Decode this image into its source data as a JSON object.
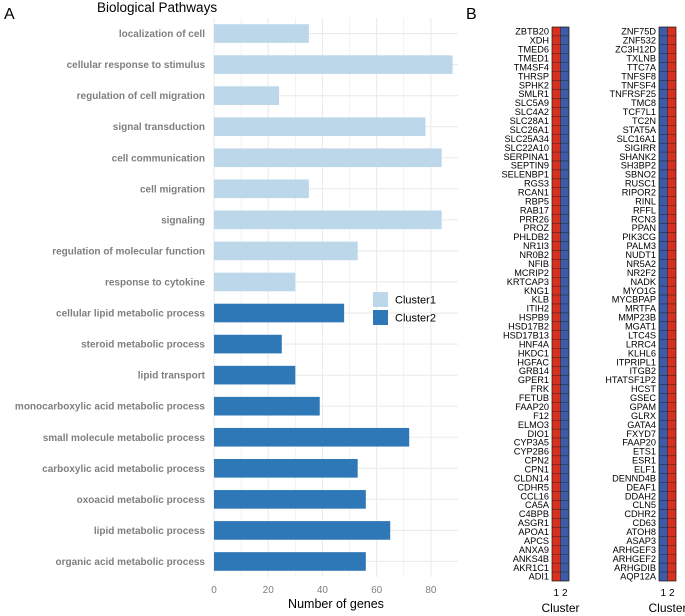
{
  "colors": {
    "cluster1": "#bcd7ea",
    "cluster2": "#2e78b7",
    "heat_red": "#d7301f",
    "heat_blue": "#3d5ba9",
    "grid": "#ebebeb"
  },
  "chart_data": [
    {
      "type": "bar",
      "orientation": "horizontal",
      "panel": "A",
      "title": "Biological Pathways",
      "xlabel": "Number of genes",
      "ylabel": "",
      "xlim": [
        0,
        90
      ],
      "xticks": [
        0,
        20,
        40,
        60,
        80
      ],
      "legend_position": "right",
      "legend": [
        {
          "name": "Cluster1",
          "color_key": "cluster1"
        },
        {
          "name": "Cluster2",
          "color_key": "cluster2"
        }
      ],
      "categories": [
        "localization of cell",
        "cellular response to stimulus",
        "regulation of cell migration",
        "signal transduction",
        "cell communication",
        "cell migration",
        "signaling",
        "regulation of molecular function",
        "response to cytokine",
        "cellular lipid metabolic process",
        "steroid metabolic process",
        "lipid transport",
        "monocarboxylic acid metabolic process",
        "small molecule metabolic process",
        "carboxylic acid metabolic process",
        "oxoacid metabolic process",
        "lipid metabolic process",
        "organic acid metabolic process"
      ],
      "values": [
        35,
        88,
        24,
        78,
        84,
        35,
        84,
        53,
        30,
        48,
        25,
        30,
        39,
        72,
        53,
        56,
        65,
        56
      ],
      "clusters": [
        "Cluster1",
        "Cluster1",
        "Cluster1",
        "Cluster1",
        "Cluster1",
        "Cluster1",
        "Cluster1",
        "Cluster1",
        "Cluster1",
        "Cluster2",
        "Cluster2",
        "Cluster2",
        "Cluster2",
        "Cluster2",
        "Cluster2",
        "Cluster2",
        "Cluster2",
        "Cluster2"
      ]
    },
    {
      "type": "heatmap",
      "panel": "B",
      "xlabel": "Cluster",
      "columns": [
        "1",
        "2"
      ],
      "left": {
        "genes": [
          "ZBTB20",
          "XDH",
          "TMED6",
          "TMED1",
          "TM4SF4",
          "THRSP",
          "SPHK2",
          "SMLR1",
          "SLC5A9",
          "SLC4A2",
          "SLC28A1",
          "SLC26A1",
          "SLC25A34",
          "SLC22A10",
          "SERPINA1",
          "SEPTIN9",
          "SELENBP1",
          "RGS3",
          "RCAN1",
          "RBP5",
          "RAB17",
          "PRR26",
          "PROZ",
          "PHLDB2",
          "NR1I3",
          "NR0B2",
          "NFIB",
          "MCRIP2",
          "KRTCAP3",
          "KNG1",
          "KLB",
          "ITIH2",
          "HSPB9",
          "HSD17B2",
          "HSD17B13",
          "HNF4A",
          "HKDC1",
          "HGFAC",
          "GRB14",
          "GPER1",
          "FRK",
          "FETUB",
          "FAAP20",
          "F12",
          "ELMO3",
          "DIO1",
          "CYP3A5",
          "CYP2B6",
          "CPN2",
          "CPN1",
          "CLDN14",
          "CDHR5",
          "CCL16",
          "CA5A",
          "C4BPB",
          "ASGR1",
          "APOA1",
          "APCS",
          "ANXA9",
          "ANKS4B",
          "AKR1C1",
          "ADI1"
        ],
        "cluster1": "high",
        "cluster2": "low"
      },
      "right": {
        "genes": [
          "ZNF75D",
          "ZNF532",
          "ZC3H12D",
          "TXLNB",
          "TTC7A",
          "TNFSF8",
          "TNFSF4",
          "TNFRSF25",
          "TMC8",
          "TCF7L1",
          "TC2N",
          "STAT5A",
          "SLC16A1",
          "SIGIRR",
          "SHANK2",
          "SH3BP2",
          "SBNO2",
          "RUSC1",
          "RIPOR2",
          "RINL",
          "RFFL",
          "RCN3",
          "PPAN",
          "PIK3CG",
          "PALM3",
          "NUDT1",
          "NR5A2",
          "NR2F2",
          "NADK",
          "MYO1G",
          "MYCBPAP",
          "MRTFA",
          "MMP23B",
          "MGAT1",
          "LTC4S",
          "LRRC4",
          "KLHL6",
          "ITPRIPL1",
          "ITGB2",
          "HTATSF1P2",
          "HCST",
          "GSEC",
          "GPAM",
          "GLRX",
          "GATA4",
          "FXYD7",
          "FAAP20",
          "ETS1",
          "ESR1",
          "ELF1",
          "DENND4B",
          "DEAF1",
          "DDAH2",
          "CLN5",
          "CDHR2",
          "CD63",
          "ATOH8",
          "ASAP3",
          "ARHGEF3",
          "ARHGEF2",
          "ARHGDIB",
          "AQP12A"
        ],
        "cluster1": "low",
        "cluster2": "high"
      }
    }
  ]
}
